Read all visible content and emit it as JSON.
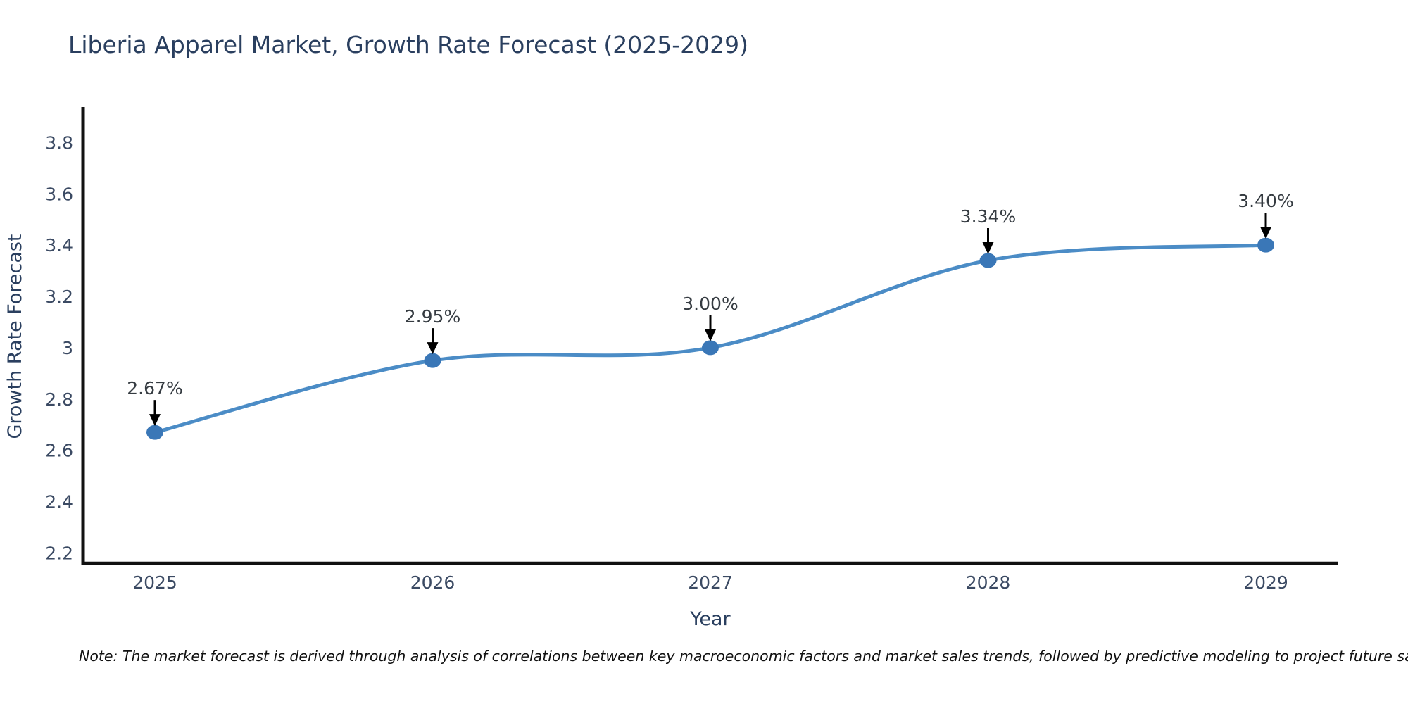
{
  "chart_data": {
    "type": "line",
    "title": "Liberia Apparel Market, Growth Rate Forecast (2025-2029)",
    "x": [
      "2025",
      "2026",
      "2027",
      "2028",
      "2029"
    ],
    "series": [
      {
        "name": "Growth Rate Forecast",
        "values": [
          2.67,
          2.95,
          3.0,
          3.34,
          3.4
        ],
        "point_labels": [
          "2.67%",
          "2.95%",
          "3.00%",
          "3.34%",
          "3.40%"
        ]
      }
    ],
    "xlabel": "Year",
    "ylabel": "Growth Rate Forecast",
    "ytick_labels": [
      "2.2",
      "2.4",
      "2.6",
      "2.8",
      "3",
      "3.2",
      "3.4",
      "3.6",
      "3.8"
    ],
    "ytick_values": [
      2.2,
      2.4,
      2.6,
      2.8,
      3.0,
      3.2,
      3.4,
      3.6,
      3.8
    ],
    "ylim": [
      2.16,
      3.93
    ],
    "grid": false,
    "legend_position": "none",
    "line_shape": "spline",
    "annotations_have_arrows": true,
    "colors": {
      "line": "#4b8cc6",
      "marker": "#3a77b7",
      "axis_line": "#111111",
      "title_text": "#2a3f5f",
      "tick_text": "#3b4a63",
      "annotation_text": "#353b41",
      "arrow": "#000000",
      "background": "#ffffff"
    },
    "note": "Note: The market forecast is derived through analysis of correlations between key macroeconomic factors and market sales trends, followed by predictive modeling to project future sales"
  }
}
